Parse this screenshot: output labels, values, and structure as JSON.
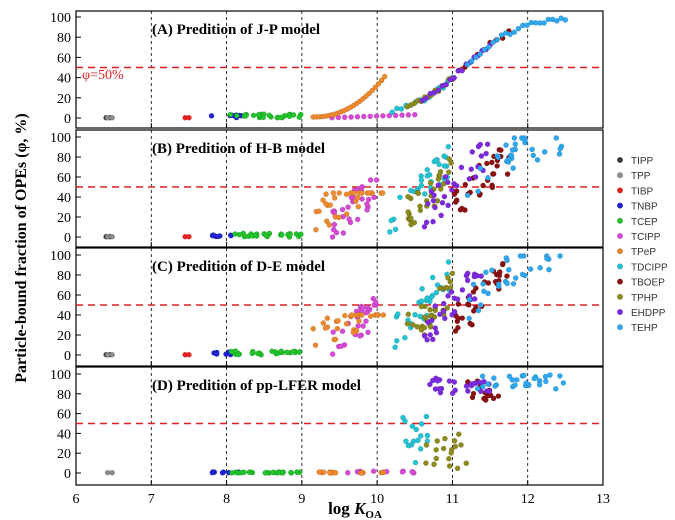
{
  "chart_data": {
    "type": "scatter",
    "ylabel": "Particle-bound fraction of OPEs (φ, %)",
    "xlabel_main": "log ",
    "xlabel_italic": "K",
    "xlabel_sub": "OA",
    "xlim": [
      6,
      13
    ],
    "ylim": [
      0,
      100
    ],
    "xticks": [
      "6",
      "7",
      "8",
      "9",
      "10",
      "11",
      "12",
      "13"
    ],
    "yticks": [
      "0",
      "20",
      "40",
      "60",
      "80",
      "100"
    ],
    "vlines": [
      7,
      8,
      9,
      10,
      11,
      12
    ],
    "threshold": 50,
    "threshold_label": "φ=50%",
    "legend_placement": "right",
    "series": [
      {
        "name": "TIPP",
        "color": "#3a3a3a",
        "x": [
          6.4,
          6.45
        ]
      },
      {
        "name": "TPP",
        "color": "#8c8c8c",
        "x": [
          6.42,
          6.48
        ]
      },
      {
        "name": "TIBP",
        "color": "#e8231f",
        "x": [
          7.45,
          7.5
        ]
      },
      {
        "name": "TNBP",
        "color": "#1f22d6",
        "x": [
          7.8,
          8.2
        ]
      },
      {
        "name": "TCEP",
        "color": "#22c42b",
        "x": [
          8.05,
          9.0
        ]
      },
      {
        "name": "TCIPP",
        "color": "#d64ad6",
        "x": [
          9.4,
          10.5
        ]
      },
      {
        "name": "TPeP",
        "color": "#f08a2e",
        "x": [
          9.15,
          10.1
        ]
      },
      {
        "name": "TDCIPP",
        "color": "#22c4d4",
        "x": [
          10.2,
          11.0
        ]
      },
      {
        "name": "TBOEP",
        "color": "#8b1010",
        "x": [
          11.0,
          11.75
        ]
      },
      {
        "name": "TPHP",
        "color": "#8f8a1c",
        "x": [
          10.4,
          11.0
        ]
      },
      {
        "name": "EHDPP",
        "color": "#7d2ae0",
        "x": [
          10.6,
          11.5
        ]
      },
      {
        "name": "TEHP",
        "color": "#2ea8f0",
        "x": [
          11.2,
          12.5
        ]
      }
    ],
    "panels": [
      {
        "title": "(A) Predition of J-P model",
        "model": "jp"
      },
      {
        "title": "(B) Predition of H-B model",
        "model": "hb"
      },
      {
        "title": "(C) Predition of D-E model",
        "model": "de"
      },
      {
        "title": "(D) Predition of pp-LFER model",
        "model": "pp"
      }
    ]
  }
}
